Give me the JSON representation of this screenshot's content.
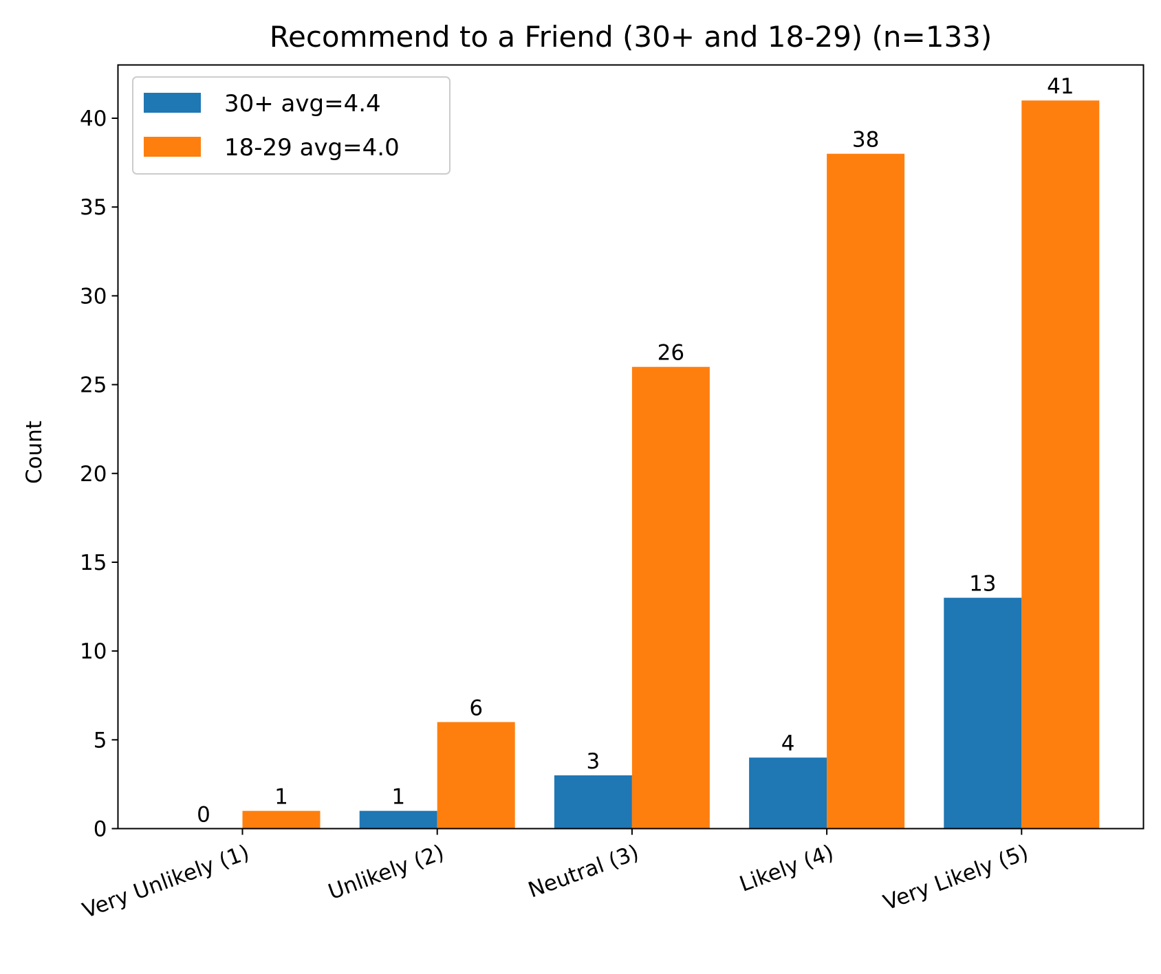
{
  "chart_data": {
    "type": "bar",
    "title": "Recommend to a Friend (30+ and 18-29) (n=133)",
    "xlabel": "",
    "ylabel": "Count",
    "ylim": [
      0,
      43
    ],
    "yticks": [
      0,
      5,
      10,
      15,
      20,
      25,
      30,
      35,
      40
    ],
    "categories": [
      "Very Unlikely (1)",
      "Unlikely (2)",
      "Neutral (3)",
      "Likely (4)",
      "Very Likely (5)"
    ],
    "series": [
      {
        "name": "30+ avg=4.4",
        "color": "#1f77b4",
        "values": [
          0,
          1,
          3,
          4,
          13
        ]
      },
      {
        "name": "18-29 avg=4.0",
        "color": "#ff7f0e",
        "values": [
          1,
          6,
          26,
          38,
          41
        ]
      }
    ],
    "legend": "top-left",
    "grid": false
  }
}
